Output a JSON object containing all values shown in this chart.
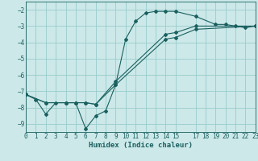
{
  "bg_color": "#cce8e8",
  "grid_color": "#99cccc",
  "line_color": "#1a6060",
  "xlabel": "Humidex (Indice chaleur)",
  "xlim": [
    0,
    23
  ],
  "ylim": [
    -9.5,
    -1.5
  ],
  "yticks": [
    -9,
    -8,
    -7,
    -6,
    -5,
    -4,
    -3,
    -2
  ],
  "xticks": [
    0,
    1,
    2,
    3,
    4,
    5,
    6,
    7,
    8,
    9,
    10,
    11,
    12,
    13,
    14,
    15,
    17,
    18,
    19,
    20,
    21,
    22,
    23
  ],
  "line1_x": [
    0,
    1,
    2,
    3,
    4,
    5,
    6,
    7,
    8,
    9,
    10,
    11,
    12,
    13,
    14,
    15,
    17,
    19,
    20,
    21,
    22,
    23
  ],
  "line1_y": [
    -7.2,
    -7.5,
    -8.4,
    -7.7,
    -7.7,
    -7.7,
    -9.3,
    -8.5,
    -8.2,
    -6.6,
    -3.8,
    -2.7,
    -2.2,
    -2.1,
    -2.1,
    -2.1,
    -2.4,
    -2.9,
    -2.9,
    -3.0,
    -3.1,
    -3.0
  ],
  "line2_x": [
    0,
    2,
    4,
    5,
    6,
    7,
    9,
    14,
    15,
    17,
    23
  ],
  "line2_y": [
    -7.2,
    -7.7,
    -7.7,
    -7.7,
    -7.7,
    -7.8,
    -6.4,
    -3.5,
    -3.4,
    -3.0,
    -3.0
  ],
  "line3_x": [
    0,
    2,
    4,
    5,
    6,
    7,
    9,
    14,
    15,
    17,
    23
  ],
  "line3_y": [
    -7.2,
    -7.7,
    -7.7,
    -7.7,
    -7.7,
    -7.8,
    -6.6,
    -3.8,
    -3.7,
    -3.2,
    -3.0
  ]
}
